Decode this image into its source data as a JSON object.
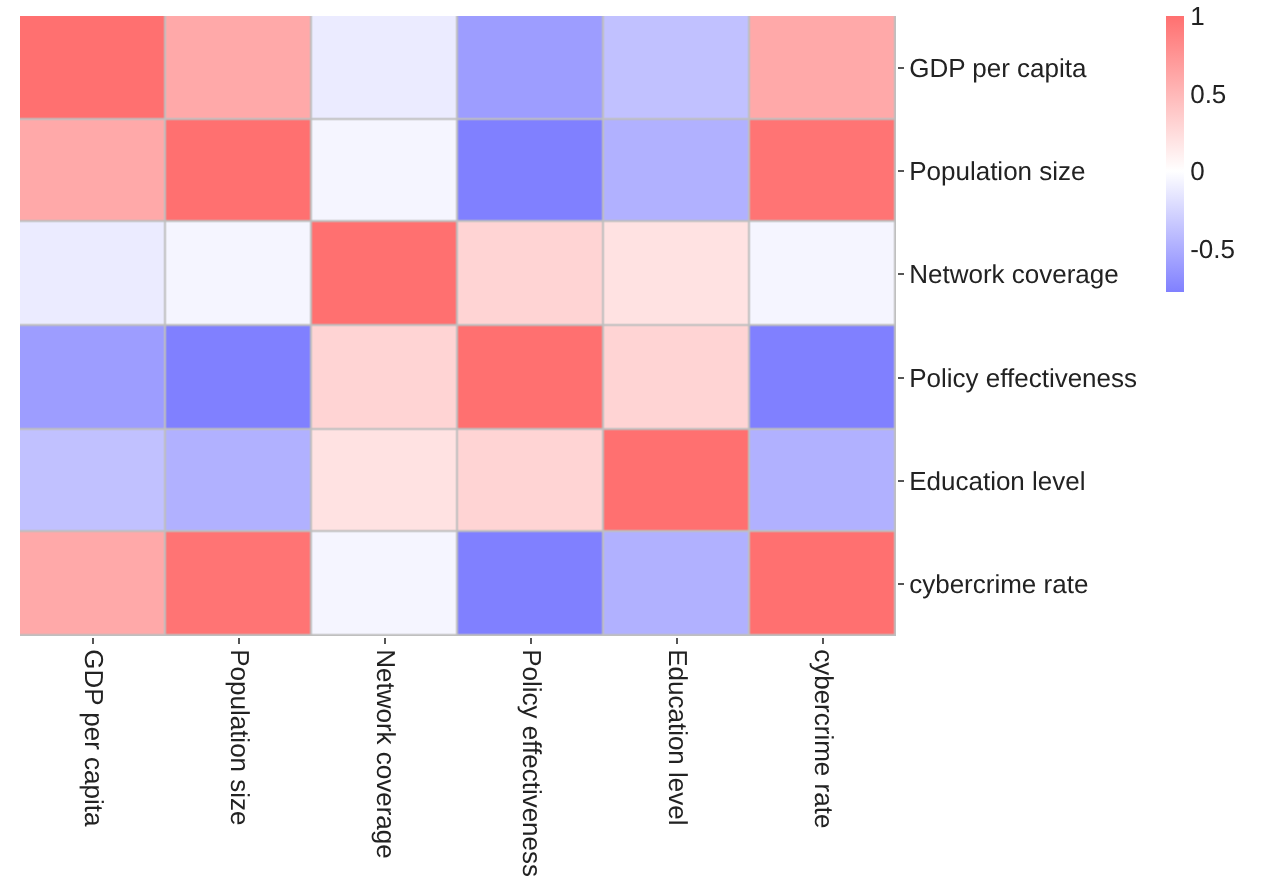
{
  "chart_data": {
    "type": "heatmap",
    "categories": [
      "GDP per capita",
      "Population size",
      "Network coverage",
      "Policy effectiveness",
      "Education level",
      "cybercrime rate"
    ],
    "y_categories": [
      "GDP per capita",
      "Population size",
      "Network coverage",
      "Policy effectiveness",
      "Education level",
      "cybercrime rate"
    ],
    "cells": [
      [
        1,
        0.6,
        -0.12,
        -0.6,
        -0.38,
        0.6
      ],
      [
        0.6,
        1,
        -0.06,
        -0.78,
        -0.48,
        0.97
      ],
      [
        -0.12,
        -0.06,
        1,
        0.3,
        0.2,
        -0.06
      ],
      [
        -0.6,
        -0.78,
        0.3,
        1,
        0.3,
        -0.78
      ],
      [
        -0.38,
        -0.48,
        0.2,
        0.3,
        1,
        -0.48
      ],
      [
        0.6,
        0.97,
        -0.06,
        -0.78,
        -0.48,
        1
      ]
    ],
    "clim": [
      -0.78,
      1
    ],
    "cticks": [
      -0.5,
      0,
      0.5,
      1
    ]
  }
}
